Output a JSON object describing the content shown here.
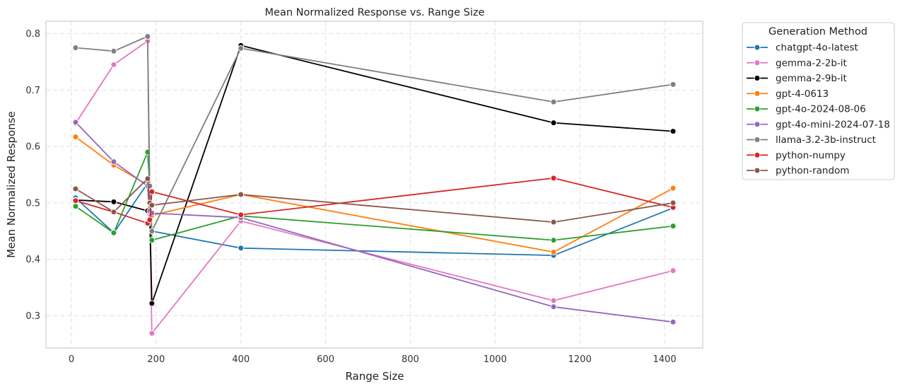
{
  "chart_data": {
    "type": "line",
    "title": "Mean Normalized Response vs. Range Size",
    "xlabel": "Range Size",
    "ylabel": "Mean Normalized Response",
    "xlim": [
      -60,
      1490
    ],
    "ylim": [
      0.243,
      0.822
    ],
    "xticks": [
      0,
      200,
      400,
      600,
      800,
      1000,
      1200,
      1400
    ],
    "yticks": [
      0.3,
      0.4,
      0.5,
      0.6,
      0.7,
      0.8
    ],
    "ytick_labels": [
      "0.3",
      "0.4",
      "0.5",
      "0.6",
      "0.7",
      "0.8"
    ],
    "grid": true,
    "legend_title": "Generation Method",
    "legend_position": "outside-right-top",
    "series": [
      {
        "name": "chatgpt-4o-latest",
        "color": "#1f77b4",
        "x": [
          10,
          100,
          180,
          185,
          190,
          400,
          1138,
          1420
        ],
        "y": [
          0.509,
          0.447,
          0.535,
          0.47,
          0.45,
          0.42,
          0.407,
          0.491
        ]
      },
      {
        "name": "gemma-2-2b-it",
        "color": "#e377c2",
        "x": [
          10,
          100,
          180,
          185,
          190,
          400,
          1138,
          1420
        ],
        "y": [
          0.641,
          0.745,
          0.787,
          0.48,
          0.269,
          0.468,
          0.327,
          0.38
        ]
      },
      {
        "name": "gemma-2-9b-it",
        "color": "#000000",
        "x": [
          10,
          100,
          180,
          185,
          190,
          400,
          1138,
          1420
        ],
        "y": [
          0.505,
          0.502,
          0.486,
          0.485,
          0.322,
          0.779,
          0.642,
          0.627
        ]
      },
      {
        "name": "gpt-4-0613",
        "color": "#ff7f0e",
        "x": [
          10,
          100,
          180,
          185,
          190,
          400,
          1138,
          1420
        ],
        "y": [
          0.617,
          0.567,
          0.532,
          0.465,
          0.478,
          0.515,
          0.413,
          0.526
        ]
      },
      {
        "name": "gpt-4o-2024-08-06",
        "color": "#2ca02c",
        "x": [
          10,
          100,
          180,
          185,
          190,
          400,
          1138,
          1420
        ],
        "y": [
          0.494,
          0.447,
          0.59,
          0.53,
          0.434,
          0.477,
          0.434,
          0.459
        ]
      },
      {
        "name": "gpt-4o-mini-2024-07-18",
        "color": "#9467bd",
        "x": [
          10,
          100,
          180,
          185,
          190,
          400,
          1138,
          1420
        ],
        "y": [
          0.643,
          0.573,
          0.53,
          0.485,
          0.482,
          0.474,
          0.316,
          0.289
        ]
      },
      {
        "name": "llama-3.2-3b-instruct",
        "color": "#7f7f7f",
        "x": [
          10,
          100,
          180,
          185,
          190,
          400,
          1138,
          1420
        ],
        "y": [
          0.775,
          0.769,
          0.795,
          0.53,
          0.45,
          0.774,
          0.679,
          0.71
        ]
      },
      {
        "name": "python-numpy",
        "color": "#d62728",
        "x": [
          10,
          100,
          180,
          185,
          190,
          400,
          1138,
          1420
        ],
        "y": [
          0.504,
          0.484,
          0.464,
          0.47,
          0.52,
          0.479,
          0.544,
          0.492
        ]
      },
      {
        "name": "python-random",
        "color": "#8c564b",
        "x": [
          10,
          100,
          180,
          185,
          190,
          400,
          1138,
          1420
        ],
        "y": [
          0.525,
          0.484,
          0.543,
          0.5,
          0.496,
          0.515,
          0.466,
          0.5
        ]
      }
    ]
  }
}
